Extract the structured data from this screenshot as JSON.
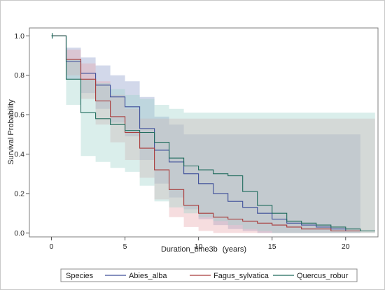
{
  "chart_data": {
    "type": "line",
    "step": true,
    "xlabel": "Duration_time3b",
    "xlabel_unit": "(years)",
    "ylabel": "Survival Probability",
    "xlim": [
      -1.5,
      22.2
    ],
    "ylim": [
      -0.02,
      1.04
    ],
    "xticks": [
      0,
      5,
      10,
      15,
      20
    ],
    "yticks": [
      0.0,
      0.2,
      0.4,
      0.6,
      0.8,
      1.0
    ],
    "ytick_labels": [
      "0.0",
      "0.2",
      "0.4",
      "0.6",
      "0.8",
      "1.0"
    ],
    "legend": {
      "title": "Species",
      "position": "bottom"
    },
    "series": [
      {
        "name": "Abies_alba",
        "color": "#3d4e99",
        "band_color": "#8a99c9",
        "x": [
          0,
          1,
          2,
          3,
          4,
          5,
          6,
          7,
          8,
          9,
          10,
          11,
          12,
          13,
          14,
          15,
          16,
          17,
          18,
          19,
          20,
          21,
          22
        ],
        "y": [
          1.0,
          0.87,
          0.81,
          0.75,
          0.69,
          0.64,
          0.53,
          0.42,
          0.36,
          0.3,
          0.25,
          0.2,
          0.16,
          0.13,
          0.1,
          0.07,
          0.05,
          0.04,
          0.03,
          0.02,
          0.01,
          0.01,
          0.01
        ],
        "lower": [
          1.0,
          0.78,
          0.71,
          0.63,
          0.56,
          0.49,
          0.37,
          0.25,
          0.18,
          0.12,
          0.07,
          0.04,
          0.02,
          0.01,
          0.0,
          0.0,
          0.0,
          0.0,
          0.0,
          0.0,
          0.0,
          0.0,
          0.0
        ],
        "upper": [
          1.0,
          0.94,
          0.89,
          0.85,
          0.8,
          0.77,
          0.69,
          0.59,
          0.55,
          0.5,
          0.5,
          0.5,
          0.5,
          0.5,
          0.5,
          0.5,
          0.5,
          0.5,
          0.5,
          0.5,
          0.5,
          0.0,
          0.0
        ]
      },
      {
        "name": "Fagus_sylvatica",
        "color": "#a83a3a",
        "band_color": "#e8a6aa",
        "x": [
          0,
          1,
          2,
          3,
          4,
          5,
          6,
          7,
          8,
          9,
          10,
          11,
          12,
          13,
          14,
          15,
          16,
          17,
          18,
          19,
          20,
          21,
          22
        ],
        "y": [
          1.0,
          0.88,
          0.78,
          0.67,
          0.59,
          0.51,
          0.43,
          0.32,
          0.22,
          0.14,
          0.1,
          0.08,
          0.07,
          0.06,
          0.05,
          0.04,
          0.03,
          0.02,
          0.02,
          0.01,
          0.01,
          0.01,
          0.01
        ],
        "lower": [
          1.0,
          0.8,
          0.68,
          0.55,
          0.46,
          0.37,
          0.28,
          0.17,
          0.08,
          0.03,
          0.01,
          0.0,
          0.0,
          0.0,
          0.0,
          0.0,
          0.0,
          0.0,
          0.0,
          0.0,
          0.0,
          0.0,
          0.0
        ],
        "upper": [
          1.0,
          0.93,
          0.86,
          0.77,
          0.7,
          0.63,
          0.58,
          0.58,
          0.58,
          0.58,
          0.58,
          0.58,
          0.58,
          0.58,
          0.58,
          0.58,
          0.58,
          0.58,
          0.58,
          0.58,
          0.58,
          0.58,
          0.58
        ]
      },
      {
        "name": "Quercus_robur",
        "color": "#1e6b5c",
        "band_color": "#9fd3ca",
        "x": [
          0,
          1,
          2,
          3,
          4,
          5,
          6,
          7,
          8,
          9,
          10,
          11,
          12,
          13,
          14,
          15,
          16,
          17,
          18,
          19,
          20,
          21,
          22
        ],
        "y": [
          1.0,
          0.78,
          0.61,
          0.58,
          0.55,
          0.52,
          0.51,
          0.46,
          0.38,
          0.34,
          0.32,
          0.3,
          0.29,
          0.21,
          0.14,
          0.1,
          0.06,
          0.05,
          0.04,
          0.03,
          0.02,
          0.01,
          0.01
        ],
        "lower": [
          1.0,
          0.65,
          0.39,
          0.36,
          0.33,
          0.31,
          0.24,
          0.16,
          0.13,
          0.1,
          0.08,
          0.06,
          0.04,
          0.02,
          0.01,
          0.0,
          0.0,
          0.0,
          0.0,
          0.0,
          0.0,
          0.0,
          0.0
        ],
        "upper": [
          1.0,
          0.88,
          0.78,
          0.76,
          0.73,
          0.7,
          0.68,
          0.65,
          0.63,
          0.61,
          0.61,
          0.61,
          0.61,
          0.61,
          0.61,
          0.61,
          0.61,
          0.61,
          0.61,
          0.61,
          0.61,
          0.61,
          0.61
        ]
      }
    ]
  }
}
